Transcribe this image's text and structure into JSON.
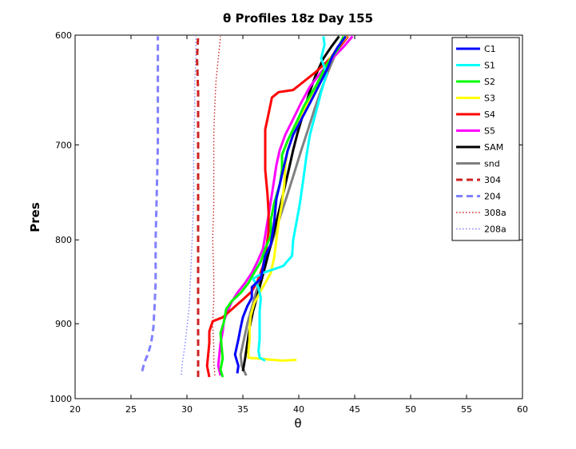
{
  "chart_data": {
    "type": "line",
    "title": "θ Profiles 18z Day 155",
    "xlabel": "θ",
    "ylabel": "Pres",
    "xlim": [
      20,
      60
    ],
    "ylim": [
      600,
      1000
    ],
    "y_reversed": true,
    "y_scale": "log",
    "xticks": [
      "20",
      "25",
      "30",
      "35",
      "40",
      "45",
      "50",
      "55",
      "60"
    ],
    "yticks": [
      "600",
      "700",
      "800",
      "900",
      "1000"
    ],
    "grid": false,
    "legend_position": "top-right",
    "series": [
      {
        "name": "C1",
        "color": "#0000ff",
        "style": "solid",
        "points": [
          [
            34.5,
            965
          ],
          [
            34.6,
            955
          ],
          [
            34.3,
            940
          ],
          [
            34.6,
            920
          ],
          [
            34.8,
            905
          ],
          [
            35.0,
            892
          ],
          [
            35.4,
            878
          ],
          [
            35.8,
            868
          ],
          [
            35.8,
            855
          ],
          [
            36.6,
            845
          ],
          [
            37.0,
            818
          ],
          [
            37.5,
            805
          ],
          [
            37.8,
            780
          ],
          [
            38.0,
            755
          ],
          [
            38.5,
            730
          ],
          [
            39.0,
            706
          ],
          [
            39.5,
            690
          ],
          [
            40.0,
            680
          ],
          [
            41.0,
            660
          ],
          [
            41.5,
            650
          ],
          [
            42.0,
            640
          ],
          [
            42.6,
            628
          ],
          [
            43.0,
            618
          ],
          [
            43.5,
            610
          ],
          [
            44.2,
            601
          ]
        ]
      },
      {
        "name": "S1",
        "color": "#00ffff",
        "style": "solid",
        "points": [
          [
            37.0,
            948
          ],
          [
            36.5,
            944
          ],
          [
            36.4,
            935
          ],
          [
            36.5,
            920
          ],
          [
            36.5,
            905
          ],
          [
            36.5,
            885
          ],
          [
            36.6,
            868
          ],
          [
            36.4,
            855
          ],
          [
            35.9,
            845
          ],
          [
            36.8,
            838
          ],
          [
            38.6,
            830
          ],
          [
            39.4,
            818
          ],
          [
            39.5,
            800
          ],
          [
            39.8,
            780
          ],
          [
            40.1,
            760
          ],
          [
            40.4,
            735
          ],
          [
            40.7,
            710
          ],
          [
            41.0,
            690
          ],
          [
            41.5,
            670
          ],
          [
            42.0,
            650
          ],
          [
            42.5,
            633
          ],
          [
            42.0,
            620
          ],
          [
            42.3,
            608
          ],
          [
            42.2,
            601
          ]
        ]
      },
      {
        "name": "S2",
        "color": "#00ff00",
        "style": "solid",
        "points": [
          [
            33.2,
            970
          ],
          [
            33.0,
            960
          ],
          [
            33.2,
            945
          ],
          [
            33.1,
            930
          ],
          [
            33.0,
            912
          ],
          [
            33.3,
            898
          ],
          [
            33.5,
            882
          ],
          [
            34.0,
            872
          ],
          [
            34.8,
            862
          ],
          [
            35.5,
            850
          ],
          [
            36.0,
            838
          ],
          [
            36.6,
            825
          ],
          [
            37.0,
            810
          ],
          [
            37.5,
            795
          ],
          [
            37.5,
            778
          ],
          [
            37.8,
            760
          ],
          [
            38.3,
            740
          ],
          [
            38.5,
            725
          ],
          [
            38.5,
            710
          ],
          [
            39.0,
            696
          ],
          [
            39.8,
            678
          ],
          [
            40.5,
            662
          ],
          [
            41.5,
            645
          ],
          [
            42.5,
            625
          ],
          [
            43.5,
            612
          ],
          [
            44.0,
            601
          ]
        ]
      },
      {
        "name": "S3",
        "color": "#ffff00",
        "style": "solid",
        "points": [
          [
            39.8,
            947
          ],
          [
            38.5,
            948
          ],
          [
            37.0,
            946
          ],
          [
            35.5,
            944
          ],
          [
            35.5,
            935
          ],
          [
            35.6,
            920
          ],
          [
            35.6,
            905
          ],
          [
            35.7,
            890
          ],
          [
            36.0,
            875
          ],
          [
            36.5,
            862
          ],
          [
            37.0,
            850
          ],
          [
            37.5,
            838
          ],
          [
            37.8,
            820
          ],
          [
            38.0,
            800
          ],
          [
            38.2,
            780
          ],
          [
            38.5,
            760
          ],
          [
            38.7,
            740
          ],
          [
            38.8,
            720
          ],
          [
            39.0,
            705
          ],
          [
            39.5,
            690
          ],
          [
            40.0,
            675
          ],
          [
            40.8,
            660
          ],
          [
            41.5,
            648
          ],
          [
            42.0,
            637
          ],
          [
            42.8,
            620
          ],
          [
            43.5,
            610
          ],
          [
            44.3,
            601
          ]
        ]
      },
      {
        "name": "S4",
        "color": "#ff0000",
        "style": "solid",
        "points": [
          [
            32.0,
            970
          ],
          [
            31.8,
            955
          ],
          [
            31.9,
            940
          ],
          [
            32.0,
            925
          ],
          [
            32.0,
            910
          ],
          [
            32.3,
            897
          ],
          [
            33.2,
            892
          ],
          [
            34.0,
            882
          ],
          [
            35.0,
            870
          ],
          [
            35.8,
            860
          ],
          [
            36.3,
            848
          ],
          [
            36.8,
            830
          ],
          [
            37.1,
            810
          ],
          [
            37.3,
            790
          ],
          [
            37.3,
            770
          ],
          [
            37.2,
            750
          ],
          [
            37.0,
            725
          ],
          [
            37.0,
            700
          ],
          [
            37.0,
            685
          ],
          [
            37.3,
            670
          ],
          [
            37.6,
            655
          ],
          [
            38.2,
            650
          ],
          [
            39.5,
            648
          ],
          [
            40.5,
            640
          ],
          [
            41.5,
            632
          ],
          [
            42.5,
            623
          ],
          [
            43.5,
            612
          ],
          [
            44.4,
            601
          ]
        ]
      },
      {
        "name": "S5",
        "color": "#ff00ff",
        "style": "solid",
        "points": [
          [
            33.0,
            968
          ],
          [
            32.8,
            955
          ],
          [
            32.9,
            940
          ],
          [
            33.0,
            925
          ],
          [
            33.2,
            910
          ],
          [
            33.3,
            897
          ],
          [
            33.6,
            885
          ],
          [
            34.0,
            873
          ],
          [
            34.5,
            862
          ],
          [
            35.2,
            850
          ],
          [
            35.8,
            838
          ],
          [
            36.3,
            825
          ],
          [
            36.8,
            810
          ],
          [
            37.0,
            795
          ],
          [
            37.2,
            780
          ],
          [
            37.4,
            765
          ],
          [
            37.6,
            750
          ],
          [
            37.8,
            735
          ],
          [
            38.0,
            720
          ],
          [
            38.3,
            705
          ],
          [
            38.8,
            690
          ],
          [
            39.5,
            675
          ],
          [
            40.2,
            660
          ],
          [
            41.0,
            645
          ],
          [
            42.0,
            632
          ],
          [
            43.0,
            620
          ],
          [
            44.0,
            610
          ],
          [
            44.8,
            601
          ]
        ]
      },
      {
        "name": "SAM",
        "color": "#000000",
        "style": "solid",
        "points": [
          [
            35.0,
            962
          ],
          [
            35.2,
            945
          ],
          [
            35.4,
            925
          ],
          [
            35.6,
            905
          ],
          [
            35.9,
            885
          ],
          [
            36.3,
            865
          ],
          [
            36.7,
            845
          ],
          [
            37.1,
            825
          ],
          [
            37.5,
            805
          ],
          [
            37.9,
            785
          ],
          [
            38.3,
            765
          ],
          [
            38.7,
            745
          ],
          [
            39.1,
            725
          ],
          [
            39.5,
            705
          ],
          [
            39.9,
            688
          ],
          [
            40.4,
            670
          ],
          [
            40.9,
            652
          ],
          [
            41.5,
            635
          ],
          [
            42.2,
            620
          ],
          [
            42.9,
            610
          ],
          [
            43.6,
            601
          ]
        ]
      },
      {
        "name": "snd",
        "color": "#808080",
        "style": "solid",
        "points": [
          [
            35.3,
            968
          ],
          [
            34.9,
            955
          ],
          [
            34.8,
            940
          ],
          [
            35.1,
            920
          ],
          [
            35.4,
            900
          ],
          [
            35.8,
            880
          ],
          [
            36.2,
            860
          ],
          [
            36.7,
            840
          ],
          [
            37.2,
            818
          ],
          [
            37.8,
            795
          ],
          [
            38.4,
            772
          ],
          [
            39.0,
            750
          ],
          [
            39.6,
            728
          ],
          [
            40.2,
            706
          ],
          [
            40.8,
            686
          ],
          [
            41.4,
            666
          ],
          [
            42.0,
            648
          ],
          [
            42.6,
            632
          ],
          [
            43.2,
            618
          ],
          [
            43.8,
            607
          ],
          [
            44.3,
            601
          ]
        ]
      },
      {
        "name": "304",
        "color": "#cc2222",
        "style": "dash",
        "points": [
          [
            31.0,
            970
          ],
          [
            31.0,
            900
          ],
          [
            31.0,
            800
          ],
          [
            31.0,
            700
          ],
          [
            31.0,
            650
          ],
          [
            30.9,
            620
          ],
          [
            31.0,
            601
          ]
        ]
      },
      {
        "name": "204",
        "color": "#8080ff",
        "style": "dash",
        "points": [
          [
            26.0,
            962
          ],
          [
            26.2,
            950
          ],
          [
            26.5,
            940
          ],
          [
            26.8,
            925
          ],
          [
            27.0,
            905
          ],
          [
            27.1,
            880
          ],
          [
            27.2,
            850
          ],
          [
            27.2,
            800
          ],
          [
            27.3,
            750
          ],
          [
            27.4,
            700
          ],
          [
            27.4,
            650
          ],
          [
            27.4,
            601
          ]
        ]
      },
      {
        "name": "308a",
        "color": "#cc2222",
        "style": "dot",
        "points": [
          [
            32.5,
            968
          ],
          [
            32.4,
            950
          ],
          [
            32.4,
            930
          ],
          [
            32.3,
            900
          ],
          [
            32.4,
            870
          ],
          [
            32.4,
            840
          ],
          [
            32.3,
            800
          ],
          [
            32.4,
            760
          ],
          [
            32.4,
            720
          ],
          [
            32.4,
            690
          ],
          [
            32.5,
            660
          ],
          [
            32.6,
            640
          ],
          [
            32.8,
            620
          ],
          [
            33.0,
            601
          ]
        ]
      },
      {
        "name": "208a",
        "color": "#8080ff",
        "style": "dot",
        "points": [
          [
            29.5,
            967
          ],
          [
            29.6,
            950
          ],
          [
            29.8,
            930
          ],
          [
            30.0,
            905
          ],
          [
            30.2,
            880
          ],
          [
            30.3,
            850
          ],
          [
            30.4,
            820
          ],
          [
            30.5,
            790
          ],
          [
            30.6,
            760
          ],
          [
            30.6,
            730
          ],
          [
            30.6,
            700
          ],
          [
            30.7,
            670
          ],
          [
            30.7,
            640
          ],
          [
            30.8,
            620
          ],
          [
            30.8,
            601
          ]
        ]
      }
    ]
  }
}
